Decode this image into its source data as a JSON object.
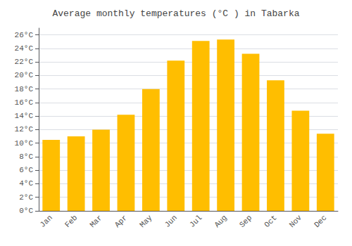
{
  "chart_data": {
    "type": "bar",
    "title": "Average monthly temperatures (°C ) in Tabarka",
    "categories": [
      "Jan",
      "Feb",
      "Mar",
      "Apr",
      "May",
      "Jun",
      "Jul",
      "Aug",
      "Sep",
      "Oct",
      "Nov",
      "Dec"
    ],
    "values": [
      10.5,
      11.0,
      12.0,
      14.2,
      18.0,
      22.2,
      25.1,
      25.3,
      23.2,
      19.3,
      14.8,
      11.4
    ],
    "color": "#FFBE00",
    "ylim": [
      0,
      27
    ],
    "yticks": [
      {
        "value": 0,
        "label": "0°C"
      },
      {
        "value": 2,
        "label": "2°C"
      },
      {
        "value": 4,
        "label": "4°C"
      },
      {
        "value": 6,
        "label": "6°C"
      },
      {
        "value": 8,
        "label": "8°C"
      },
      {
        "value": 10,
        "label": "10°C"
      },
      {
        "value": 12,
        "label": "12°C"
      },
      {
        "value": 14,
        "label": "14°C"
      },
      {
        "value": 16,
        "label": "16°C"
      },
      {
        "value": 18,
        "label": "18°C"
      },
      {
        "value": 20,
        "label": "20°C"
      },
      {
        "value": 22,
        "label": "22°C"
      },
      {
        "value": 24,
        "label": "24°C"
      },
      {
        "value": 26,
        "label": "26°C"
      }
    ],
    "grid": true
  }
}
